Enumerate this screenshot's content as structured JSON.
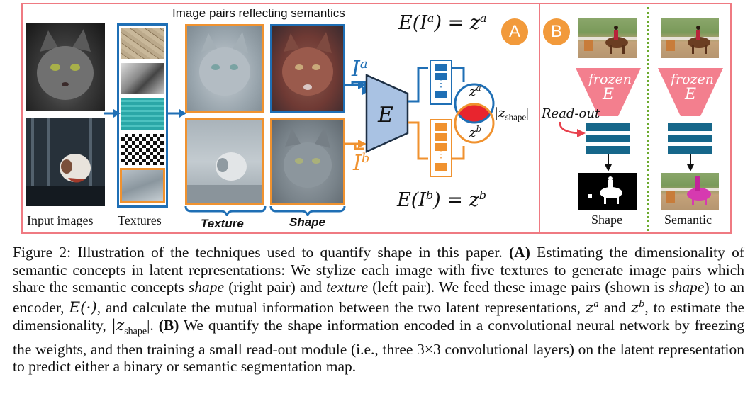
{
  "panel_a": {
    "badge": "A",
    "title": "Image pairs reflecting semantics",
    "eq_top": "E(I",
    "eq_top_sup": "a",
    "eq_top_rhs": ") = z",
    "eq_top_rhs_sup": "a",
    "eq_bottom": "E(I",
    "eq_bottom_sup": "b",
    "eq_bottom_rhs": ") = z",
    "eq_bottom_rhs_sup": "b",
    "label_input": "Input images",
    "label_textures": "Textures",
    "label_texture": "Texture",
    "label_shape": "Shape",
    "arrow_top_label": "I",
    "arrow_top_sup": "a",
    "arrow_bottom_label": "I",
    "arrow_bottom_sup": "b",
    "encoder_label": "E",
    "venn_top": "z",
    "venn_top_sup": "a",
    "venn_bottom": "z",
    "venn_bottom_sup": "b",
    "zshape": "|z",
    "zshape_sub": "shape",
    "zshape_end": "|",
    "colors": {
      "blue": "#1f6fb5",
      "orange": "#f0922f",
      "red": "#e8252e",
      "teal": "#2a9db0",
      "encoder_fill": "#a9c2e3"
    }
  },
  "panel_b": {
    "badge": "B",
    "frozen_left": "frozen",
    "frozen_left_e": "E",
    "frozen_right": "frozen",
    "frozen_right_e": "E",
    "readout": "Read-out",
    "label_shape": "Shape",
    "label_semantic": "Semantic",
    "colors": {
      "funnel": "#f37f8e",
      "bars": "#16678a",
      "divider": "#6dab2f"
    }
  },
  "caption": {
    "prefix": "Figure 2: Illustration of the techniques used to quantify shape in this paper. ",
    "a_tag": "(A)",
    "a_text1": " Estimating the dimensionality of semantic concepts in latent representations: We stylize each image with five textures to generate image pairs which share the semantic concepts ",
    "a_shape": "shape",
    "a_text2": " (right pair) and ",
    "a_texture": "texture",
    "a_text3": " (left pair). We feed these image pairs (shown is ",
    "a_shape2": "shape",
    "a_text4": ") to an encoder, ",
    "a_enc": "E(·)",
    "a_text5": ", and calculate the mutual information between the two latent representations, ",
    "a_za": "z",
    "a_za_sup": "a",
    "a_and": " and ",
    "a_zb": "z",
    "a_zb_sup": "b",
    "a_text6": ", to estimate the dimensionality, ",
    "a_zs": "|z",
    "a_zs_sub": "shape",
    "a_zs_end": "|.",
    "b_tag": "(B)",
    "b_text": " We quantify the shape information encoded in a convolutional neural network by freezing the weights, and then training a small read-out module (i.e., three 3×3 convolutional layers) on the latent representation to predict either a binary or semantic segmentation map."
  }
}
